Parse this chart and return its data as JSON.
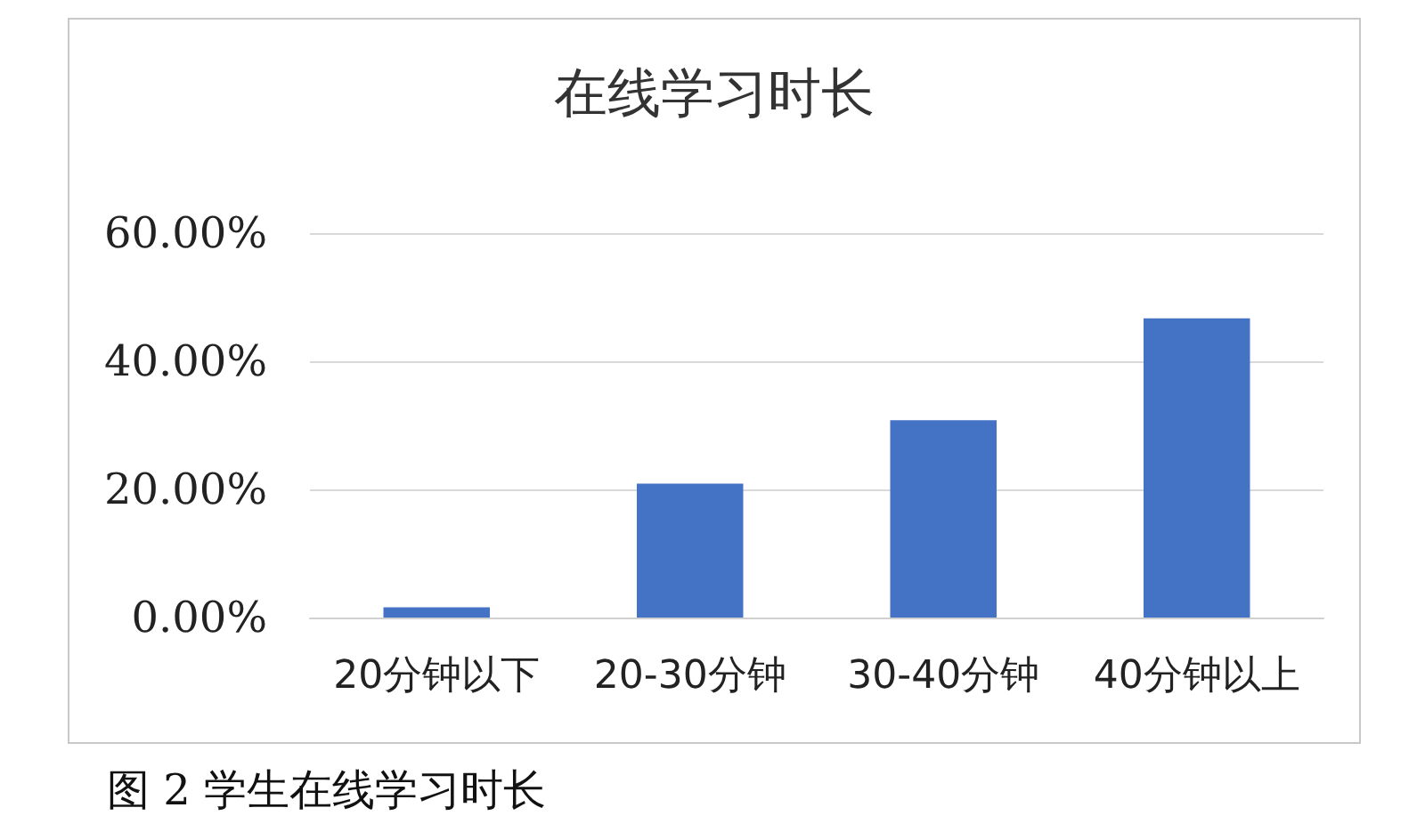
{
  "chart_data": {
    "type": "bar",
    "title": "在线学习时长",
    "categories": [
      "20分钟以下",
      "20-30分钟",
      "30-40分钟",
      "40分钟以上"
    ],
    "values": [
      1.6,
      20.9,
      30.8,
      46.7
    ],
    "color": "#4472c4",
    "ylim": [
      0,
      60
    ],
    "yticks": [
      {
        "value": 0,
        "label": "0.00%"
      },
      {
        "value": 20,
        "label": "20.00%"
      },
      {
        "value": 40,
        "label": "40.00%"
      },
      {
        "value": 60,
        "label": "60.00%"
      }
    ],
    "grid": "y",
    "annotations": [
      "图 2 学生在线学习时长"
    ]
  }
}
